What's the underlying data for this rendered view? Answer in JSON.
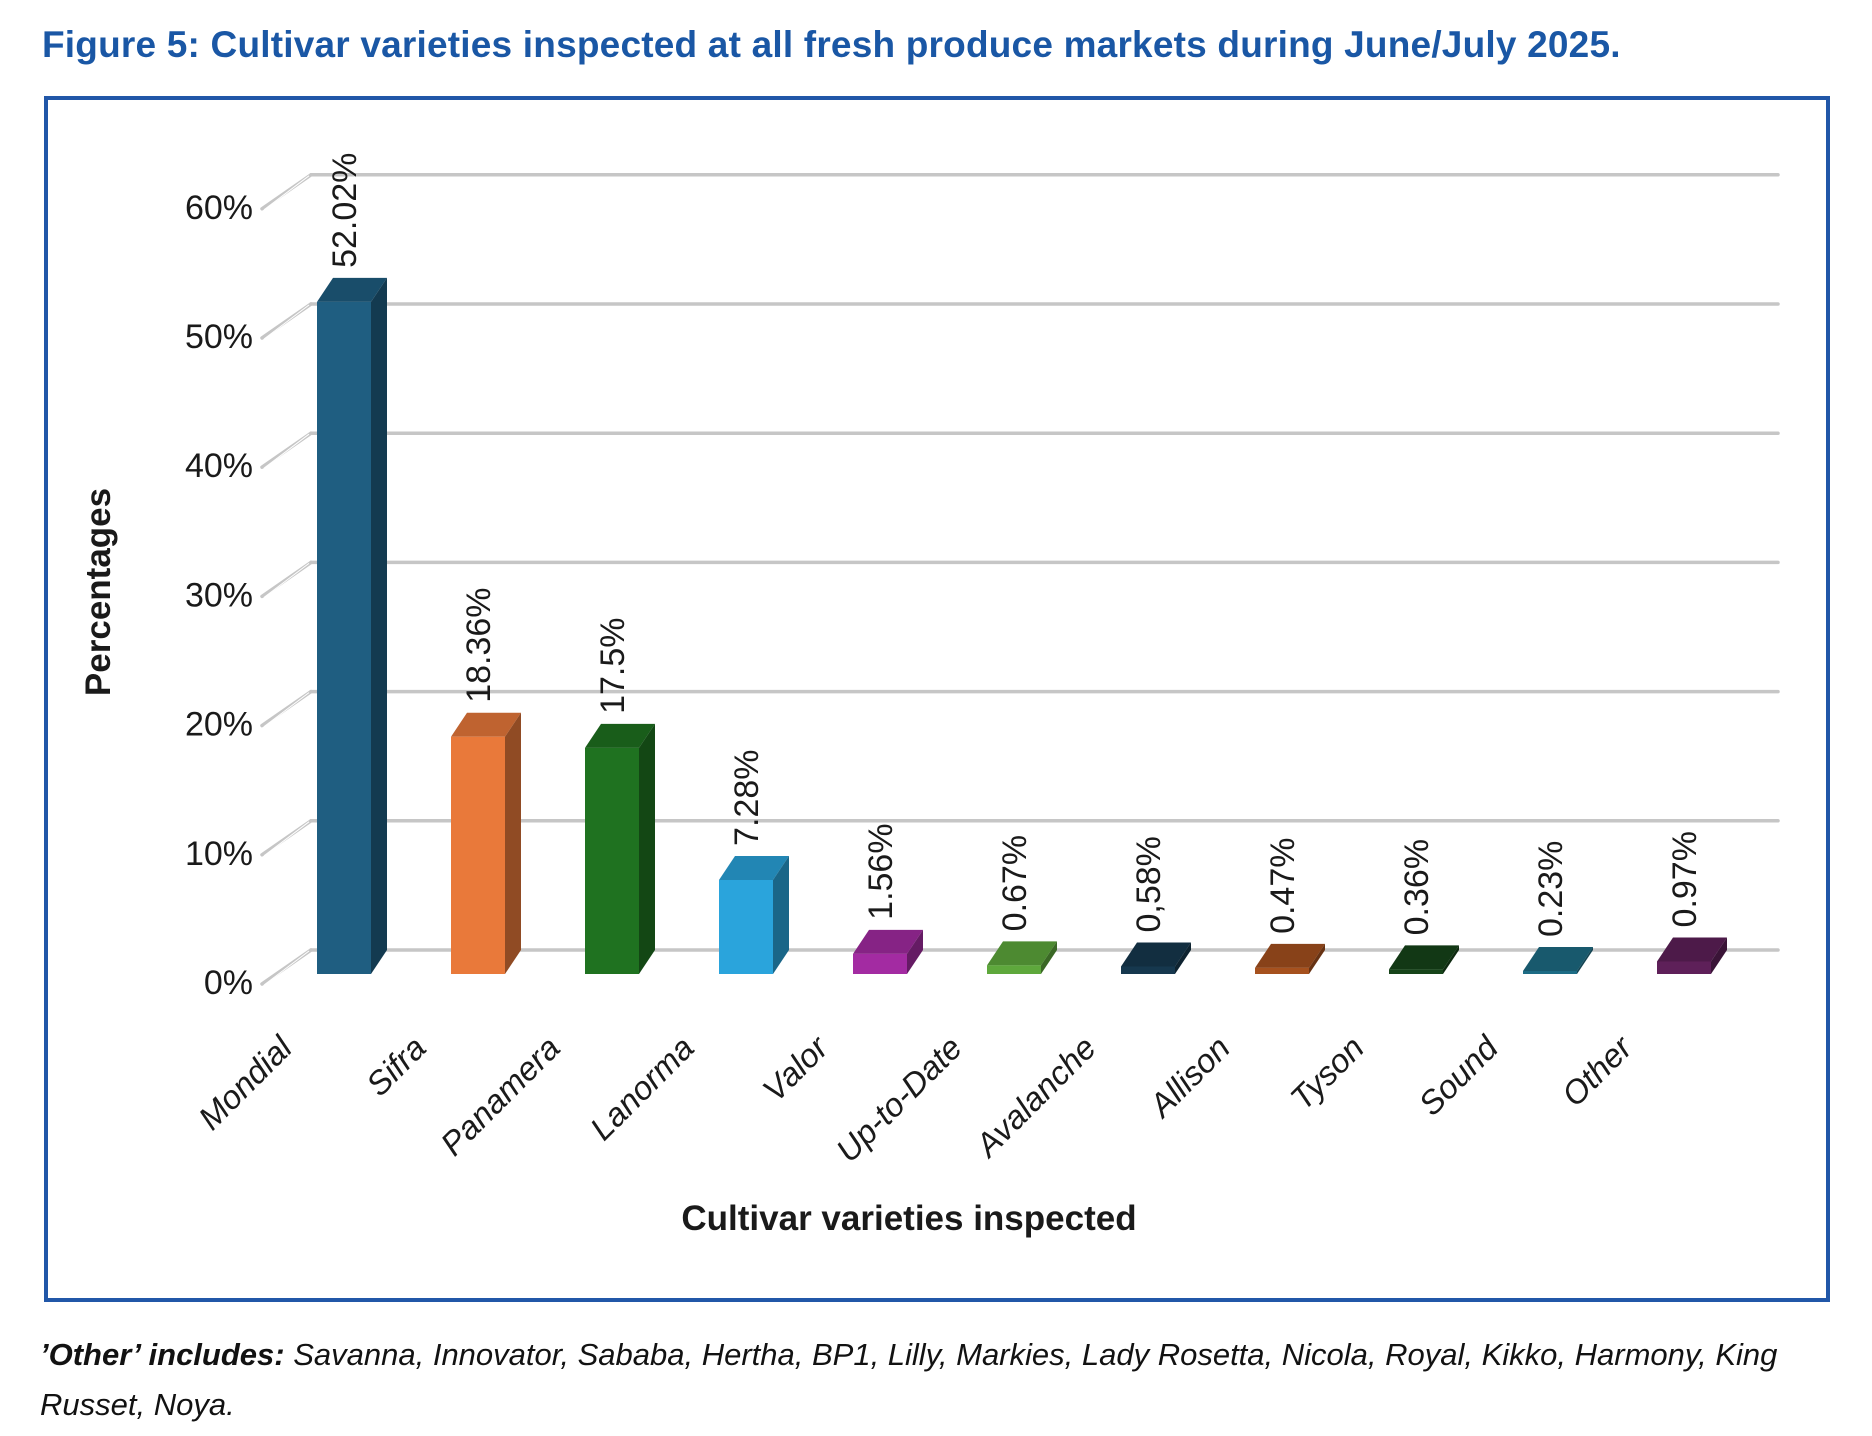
{
  "page": {
    "title": "Figure 5: Cultivar varieties inspected at all fresh produce markets during June/July 2025."
  },
  "note": {
    "lead": "’Other’ includes:",
    "rest": " Savanna, Innovator, Sababa, Hertha, BP1, Lilly, Markies, Lady Rosetta, Nicola, Royal, Kikko, Harmony, King Russet, Noya."
  },
  "colors": {
    "title": "#1A57A5",
    "chart_border": "#2157A8",
    "gridline": "#C6C6C6",
    "text": "#1A1A1A"
  },
  "chart_data": {
    "type": "bar",
    "style": "3d-column",
    "title": "Figure 5: Cultivar varieties inspected at all fresh produce markets during June/July 2025.",
    "xlabel": "Cultivar varieties inspected",
    "ylabel": "Percentages",
    "ylim": [
      0,
      60
    ],
    "ytick_step": 10,
    "ytick_labels": [
      "0%",
      "10%",
      "20%",
      "30%",
      "40%",
      "50%",
      "60%"
    ],
    "grid": true,
    "legend": "none",
    "categories": [
      "Mondial",
      "Sifra",
      "Panamera",
      "Lanorma",
      "Valor",
      "Up-to-Date",
      "Avalanche",
      "Allison",
      "Tyson",
      "Sound",
      "Other"
    ],
    "values": [
      52.02,
      18.36,
      17.5,
      7.28,
      1.56,
      0.67,
      0.58,
      0.47,
      0.36,
      0.23,
      0.97
    ],
    "value_labels": [
      "52.02%",
      "18.36%",
      "17.5%",
      "7.28%",
      "1.56%",
      "0.67%",
      "0,58%",
      "0.47%",
      "0.36%",
      "0.23%",
      "0.97%"
    ],
    "bar_colors": [
      "#1F5E81",
      "#E9793A",
      "#1F7220",
      "#2AA4DC",
      "#A32BA2",
      "#5EA83C",
      "#16384E",
      "#A6511E",
      "#164419",
      "#1D6C85",
      "#5E2059"
    ]
  }
}
